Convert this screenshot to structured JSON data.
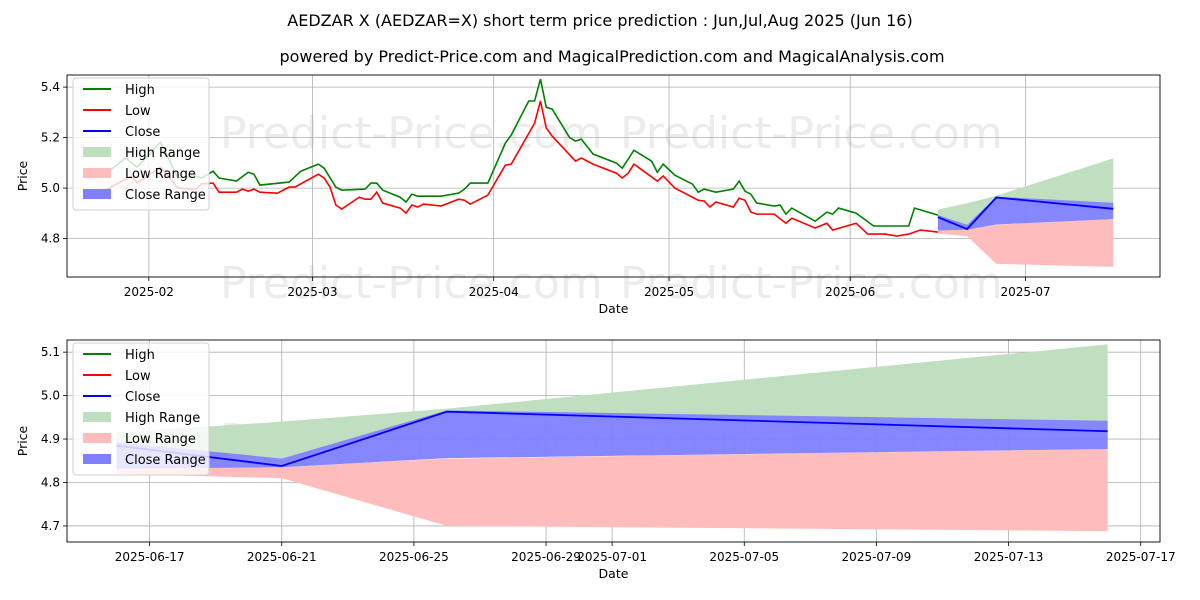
{
  "title": "AEDZAR X (AEDZAR=X) short term price prediction : Jun,Jul,Aug 2025 (Jun 16)",
  "subtitle": "powered by Predict-Price.com and MagicalPrediction.com and MagicalAnalysis.com",
  "watermark": "Predict-Price.com",
  "colors": {
    "high": "#008000",
    "low": "#ff0000",
    "close": "#0000ff",
    "high_range": "#c0dfc0",
    "low_range": "#ffbcbc",
    "close_range": "#8080ff"
  },
  "legend": [
    "High",
    "Low",
    "Close",
    "High Range",
    "Low Range",
    "Close Range"
  ],
  "chart_data": [
    {
      "type": "line",
      "xlabel": "Date",
      "ylabel": "Price",
      "xlim": [
        "2025-01-18",
        "2025-07-24"
      ],
      "ylim": [
        4.648,
        5.448
      ],
      "grid": true,
      "legend_position": "top-left",
      "xticks": [
        [
          "2025-02-01",
          "2025-02"
        ],
        [
          "2025-03-01",
          "2025-03"
        ],
        [
          "2025-04-01",
          "2025-04"
        ],
        [
          "2025-05-01",
          "2025-05"
        ],
        [
          "2025-06-01",
          "2025-06"
        ],
        [
          "2025-07-01",
          "2025-07"
        ]
      ],
      "yticks": [
        4.8,
        5.0,
        5.2,
        5.4
      ],
      "ytick_labels": [
        "4.8",
        "5.0",
        "5.2",
        "5.4"
      ],
      "show_history": true
    },
    {
      "type": "line",
      "xlabel": "Date",
      "ylabel": "Price",
      "xlim": [
        "2025-06-14T12:00",
        "2025-07-17T14:00"
      ],
      "ylim": [
        4.663,
        5.128
      ],
      "grid": true,
      "legend_position": "top-left",
      "xticks": [
        [
          "2025-06-17",
          "2025-06-17"
        ],
        [
          "2025-06-21",
          "2025-06-21"
        ],
        [
          "2025-06-25",
          "2025-06-25"
        ],
        [
          "2025-06-29",
          "2025-06-29"
        ],
        [
          "2025-07-01",
          "2025-07-01"
        ],
        [
          "2025-07-05",
          "2025-07-05"
        ],
        [
          "2025-07-09",
          "2025-07-09"
        ],
        [
          "2025-07-13",
          "2025-07-13"
        ],
        [
          "2025-07-17",
          "2025-07-17"
        ]
      ],
      "yticks": [
        4.7,
        4.8,
        4.9,
        5.0,
        5.1
      ],
      "ytick_labels": [
        "4.7",
        "4.8",
        "4.9",
        "5.0",
        "5.1"
      ],
      "show_history": false
    }
  ],
  "history": {
    "high": [
      [
        "2025-01-24",
        5.044
      ],
      [
        "2025-01-28",
        5.119
      ],
      [
        "2025-01-30",
        5.083
      ],
      [
        "2025-02-03",
        5.182
      ],
      [
        "2025-02-06",
        5.04
      ],
      [
        "2025-02-09",
        5.048
      ],
      [
        "2025-02-10",
        5.04
      ],
      [
        "2025-02-12",
        5.067
      ],
      [
        "2025-02-13",
        5.04
      ],
      [
        "2025-02-16",
        5.028
      ],
      [
        "2025-02-18",
        5.063
      ],
      [
        "2025-02-19",
        5.055
      ],
      [
        "2025-02-20",
        5.012
      ],
      [
        "2025-02-25",
        5.024
      ],
      [
        "2025-02-27",
        5.067
      ],
      [
        "2025-03-02",
        5.095
      ],
      [
        "2025-03-03",
        5.079
      ],
      [
        "2025-03-05",
        5.004
      ],
      [
        "2025-03-06",
        4.992
      ],
      [
        "2025-03-10",
        4.996
      ],
      [
        "2025-03-11",
        5.02
      ],
      [
        "2025-03-12",
        5.02
      ],
      [
        "2025-03-13",
        4.992
      ],
      [
        "2025-03-16",
        4.964
      ],
      [
        "2025-03-17",
        4.945
      ],
      [
        "2025-03-18",
        4.976
      ],
      [
        "2025-03-19",
        4.968
      ],
      [
        "2025-03-23",
        4.968
      ],
      [
        "2025-03-26",
        4.98
      ],
      [
        "2025-03-27",
        4.996
      ],
      [
        "2025-03-28",
        5.02
      ],
      [
        "2025-03-31",
        5.02
      ],
      [
        "2025-04-03",
        5.178
      ],
      [
        "2025-04-04",
        5.21
      ],
      [
        "2025-04-07",
        5.345
      ],
      [
        "2025-04-08",
        5.345
      ],
      [
        "2025-04-09",
        5.432
      ],
      [
        "2025-04-10",
        5.32
      ],
      [
        "2025-04-11",
        5.313
      ],
      [
        "2025-04-14",
        5.2
      ],
      [
        "2025-04-15",
        5.186
      ],
      [
        "2025-04-16",
        5.194
      ],
      [
        "2025-04-18",
        5.135
      ],
      [
        "2025-04-22",
        5.099
      ],
      [
        "2025-04-23",
        5.079
      ],
      [
        "2025-04-25",
        5.15
      ],
      [
        "2025-04-28",
        5.107
      ],
      [
        "2025-04-29",
        5.063
      ],
      [
        "2025-04-30",
        5.095
      ],
      [
        "2025-05-02",
        5.051
      ],
      [
        "2025-05-05",
        5.016
      ],
      [
        "2025-05-06",
        4.984
      ],
      [
        "2025-05-07",
        4.996
      ],
      [
        "2025-05-09",
        4.984
      ],
      [
        "2025-05-12",
        4.996
      ],
      [
        "2025-05-13",
        5.028
      ],
      [
        "2025-05-14",
        4.988
      ],
      [
        "2025-05-15",
        4.976
      ],
      [
        "2025-05-16",
        4.941
      ],
      [
        "2025-05-19",
        4.929
      ],
      [
        "2025-05-20",
        4.933
      ],
      [
        "2025-05-21",
        4.897
      ],
      [
        "2025-05-22",
        4.921
      ],
      [
        "2025-05-26",
        4.869
      ],
      [
        "2025-05-28",
        4.905
      ],
      [
        "2025-05-29",
        4.897
      ],
      [
        "2025-05-30",
        4.921
      ],
      [
        "2025-06-02",
        4.901
      ],
      [
        "2025-06-05",
        4.85
      ],
      [
        "2025-06-11",
        4.85
      ],
      [
        "2025-06-12",
        4.921
      ],
      [
        "2025-06-16",
        4.893
      ]
    ],
    "low": [
      [
        "2025-01-24",
        4.984
      ],
      [
        "2025-01-29",
        5.048
      ],
      [
        "2025-01-30",
        5.02
      ],
      [
        "2025-02-03",
        5.083
      ],
      [
        "2025-02-06",
        5.0
      ],
      [
        "2025-02-09",
        4.996
      ],
      [
        "2025-02-10",
        5.016
      ],
      [
        "2025-02-12",
        5.02
      ],
      [
        "2025-02-13",
        4.984
      ],
      [
        "2025-02-16",
        4.984
      ],
      [
        "2025-02-17",
        4.996
      ],
      [
        "2025-02-18",
        4.988
      ],
      [
        "2025-02-19",
        4.996
      ],
      [
        "2025-02-20",
        4.984
      ],
      [
        "2025-02-23",
        4.98
      ],
      [
        "2025-02-25",
        5.004
      ],
      [
        "2025-02-26",
        5.004
      ],
      [
        "2025-03-02",
        5.055
      ],
      [
        "2025-03-03",
        5.04
      ],
      [
        "2025-03-04",
        5.004
      ],
      [
        "2025-03-05",
        4.933
      ],
      [
        "2025-03-06",
        4.917
      ],
      [
        "2025-03-09",
        4.964
      ],
      [
        "2025-03-10",
        4.956
      ],
      [
        "2025-03-11",
        4.956
      ],
      [
        "2025-03-12",
        4.984
      ],
      [
        "2025-03-13",
        4.941
      ],
      [
        "2025-03-16",
        4.921
      ],
      [
        "2025-03-17",
        4.901
      ],
      [
        "2025-03-18",
        4.933
      ],
      [
        "2025-03-19",
        4.925
      ],
      [
        "2025-03-20",
        4.937
      ],
      [
        "2025-03-23",
        4.929
      ],
      [
        "2025-03-26",
        4.956
      ],
      [
        "2025-03-27",
        4.952
      ],
      [
        "2025-03-28",
        4.937
      ],
      [
        "2025-03-31",
        4.972
      ],
      [
        "2025-04-03",
        5.091
      ],
      [
        "2025-04-04",
        5.095
      ],
      [
        "2025-04-08",
        5.257
      ],
      [
        "2025-04-09",
        5.345
      ],
      [
        "2025-04-10",
        5.238
      ],
      [
        "2025-04-11",
        5.206
      ],
      [
        "2025-04-15",
        5.107
      ],
      [
        "2025-04-16",
        5.119
      ],
      [
        "2025-04-18",
        5.095
      ],
      [
        "2025-04-22",
        5.059
      ],
      [
        "2025-04-23",
        5.04
      ],
      [
        "2025-04-24",
        5.059
      ],
      [
        "2025-04-25",
        5.095
      ],
      [
        "2025-04-29",
        5.028
      ],
      [
        "2025-04-30",
        5.048
      ],
      [
        "2025-05-02",
        5.0
      ],
      [
        "2025-05-06",
        4.952
      ],
      [
        "2025-05-07",
        4.949
      ],
      [
        "2025-05-08",
        4.925
      ],
      [
        "2025-05-09",
        4.945
      ],
      [
        "2025-05-12",
        4.925
      ],
      [
        "2025-05-13",
        4.96
      ],
      [
        "2025-05-14",
        4.952
      ],
      [
        "2025-05-15",
        4.905
      ],
      [
        "2025-05-16",
        4.897
      ],
      [
        "2025-05-19",
        4.897
      ],
      [
        "2025-05-21",
        4.861
      ],
      [
        "2025-05-22",
        4.881
      ],
      [
        "2025-05-26",
        4.842
      ],
      [
        "2025-05-28",
        4.861
      ],
      [
        "2025-05-29",
        4.834
      ],
      [
        "2025-06-02",
        4.861
      ],
      [
        "2025-06-04",
        4.818
      ],
      [
        "2025-06-07",
        4.818
      ],
      [
        "2025-06-09",
        4.81
      ],
      [
        "2025-06-11",
        4.818
      ],
      [
        "2025-06-13",
        4.834
      ],
      [
        "2025-06-16",
        4.826
      ]
    ]
  },
  "forecast": {
    "dates": [
      "2025-06-16",
      "2025-06-21",
      "2025-06-26",
      "2025-07-16"
    ],
    "close": [
      4.885,
      4.838,
      4.963,
      4.918
    ],
    "high_range": {
      "upper": [
        4.915,
        4.94,
        4.97,
        5.118
      ],
      "lower": [
        4.87,
        4.855,
        4.963,
        4.94
      ]
    },
    "close_range": {
      "upper": [
        4.893,
        4.855,
        4.966,
        4.942
      ],
      "lower": [
        4.832,
        4.835,
        4.856,
        4.877
      ]
    },
    "low_range": {
      "upper": [
        4.835,
        4.835,
        4.855,
        4.877
      ],
      "lower": [
        4.82,
        4.81,
        4.7,
        4.688
      ]
    }
  }
}
